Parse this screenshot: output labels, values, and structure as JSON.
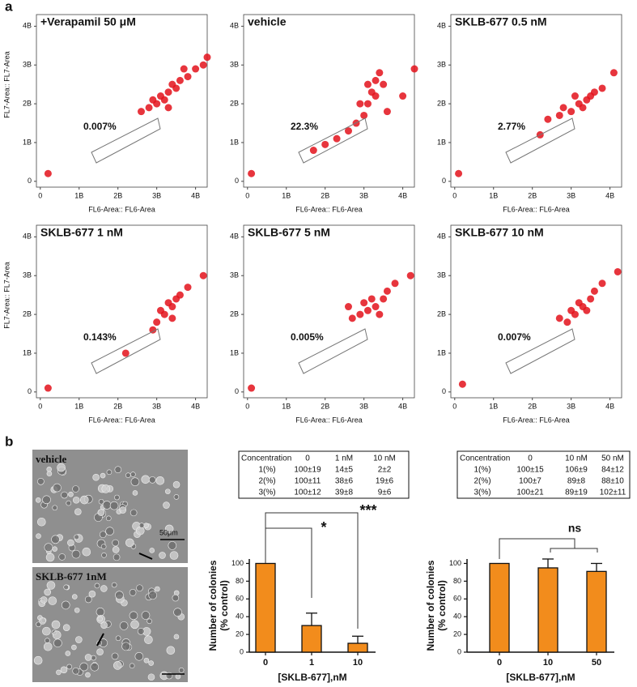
{
  "panel_labels": [
    "a",
    "b"
  ],
  "chart_data": [
    {
      "type": "scatter",
      "title": "+Verapamil 50 μM",
      "x_label": "FL6-Area:: FL6-Area",
      "y_label": "FL7-Area:: FL7-Area",
      "annotations": [
        "0.007%"
      ],
      "color": "#e3121b",
      "x": [
        2.6,
        2.8,
        3.0,
        3.1,
        3.3,
        3.4,
        3.5,
        3.6,
        3.8,
        4.0,
        4.2,
        3.2,
        2.9,
        3.3,
        3.7,
        0.2,
        4.3
      ],
      "y": [
        1.8,
        1.9,
        2.0,
        2.2,
        2.3,
        2.5,
        2.4,
        2.6,
        2.7,
        2.9,
        3.0,
        2.1,
        2.1,
        1.9,
        2.9,
        0.2,
        3.2
      ],
      "xlim": [
        -0.1,
        4.3
      ],
      "ylim": [
        -0.15,
        4.3
      ],
      "xticks": [
        0,
        {
          "value": 1,
          "label": "1B"
        },
        {
          "value": 2,
          "label": "2B"
        },
        {
          "value": 3,
          "label": "3B"
        },
        {
          "value": 4,
          "label": "4B"
        }
      ],
      "yticks": [
        0,
        {
          "value": 1,
          "label": "1B"
        },
        {
          "value": 2,
          "label": "2B"
        },
        {
          "value": 3,
          "label": "3B"
        },
        {
          "value": 4,
          "label": "4B"
        }
      ]
    },
    {
      "type": "scatter",
      "title": "vehicle",
      "x_label": "FL6-Area:: FL6-Area",
      "annotations": [
        "22.3%"
      ],
      "color": "#e3121b",
      "x": [
        1.7,
        2.0,
        2.3,
        2.6,
        2.8,
        3.0,
        3.1,
        3.2,
        3.3,
        3.4,
        3.1,
        3.3,
        3.5,
        2.9,
        3.6,
        4.0,
        4.3,
        0.1
      ],
      "y": [
        0.8,
        0.95,
        1.1,
        1.3,
        1.5,
        1.7,
        2.0,
        2.3,
        2.6,
        2.8,
        2.5,
        2.2,
        2.5,
        2.0,
        1.8,
        2.2,
        2.9,
        0.2
      ],
      "xlim": [
        -0.1,
        4.3
      ],
      "ylim": [
        -0.15,
        4.3
      ],
      "xticks": [
        0,
        {
          "value": 1,
          "label": "1B"
        },
        {
          "value": 2,
          "label": "2B"
        },
        {
          "value": 3,
          "label": "3B"
        },
        {
          "value": 4,
          "label": "4B"
        }
      ],
      "yticks": [
        0,
        {
          "value": 1,
          "label": "1B"
        },
        {
          "value": 2,
          "label": "2B"
        },
        {
          "value": 3,
          "label": "3B"
        },
        {
          "value": 4,
          "label": "4B"
        }
      ]
    },
    {
      "type": "scatter",
      "title": "SKLB-677 0.5 nM",
      "x_label": "FL6-Area:: FL6-Area",
      "annotations": [
        "2.77%"
      ],
      "color": "#e3121b",
      "x": [
        2.4,
        2.7,
        3.0,
        3.2,
        3.4,
        3.6,
        3.1,
        3.3,
        3.5,
        2.8,
        3.8,
        4.1,
        2.2,
        0.1
      ],
      "y": [
        1.6,
        1.7,
        1.8,
        2.0,
        2.1,
        2.3,
        2.2,
        1.9,
        2.2,
        1.9,
        2.4,
        2.8,
        1.2,
        0.2
      ],
      "xlim": [
        -0.1,
        4.3
      ],
      "ylim": [
        -0.15,
        4.3
      ],
      "xticks": [
        0,
        {
          "value": 1,
          "label": "1B"
        },
        {
          "value": 2,
          "label": "2B"
        },
        {
          "value": 3,
          "label": "3B"
        },
        {
          "value": 4,
          "label": "4B"
        }
      ],
      "yticks": [
        0,
        {
          "value": 1,
          "label": "1B"
        },
        {
          "value": 2,
          "label": "2B"
        },
        {
          "value": 3,
          "label": "3B"
        },
        {
          "value": 4,
          "label": "4B"
        }
      ]
    },
    {
      "type": "scatter",
      "title": "SKLB-677 1 nM",
      "x_label": "FL6-Area:: FL6-Area",
      "y_label": "FL7-Area:: FL7-Area",
      "annotations": [
        "0.143%"
      ],
      "color": "#e3121b",
      "x": [
        3.0,
        3.2,
        3.4,
        3.5,
        3.3,
        3.6,
        3.1,
        3.4,
        2.9,
        3.8,
        4.2,
        2.2,
        0.2
      ],
      "y": [
        1.8,
        2.0,
        2.2,
        2.4,
        2.3,
        2.5,
        2.1,
        1.9,
        1.6,
        2.7,
        3.0,
        1.0,
        0.1
      ],
      "xlim": [
        -0.1,
        4.3
      ],
      "ylim": [
        -0.15,
        4.3
      ],
      "xticks": [
        0,
        {
          "value": 1,
          "label": "1B"
        },
        {
          "value": 2,
          "label": "2B"
        },
        {
          "value": 3,
          "label": "3B"
        },
        {
          "value": 4,
          "label": "4B"
        }
      ],
      "yticks": [
        0,
        {
          "value": 1,
          "label": "1B"
        },
        {
          "value": 2,
          "label": "2B"
        },
        {
          "value": 3,
          "label": "3B"
        },
        {
          "value": 4,
          "label": "4B"
        }
      ]
    },
    {
      "type": "scatter",
      "title": "SKLB-677 5 nM",
      "x_label": "FL6-Area:: FL6-Area",
      "annotations": [
        "0.005%"
      ],
      "color": "#e3121b",
      "x": [
        2.7,
        2.9,
        3.1,
        3.3,
        3.5,
        3.2,
        3.0,
        3.4,
        3.6,
        3.8,
        4.2,
        2.6,
        0.1
      ],
      "y": [
        1.9,
        2.0,
        2.1,
        2.2,
        2.4,
        2.4,
        2.3,
        2.0,
        2.6,
        2.8,
        3.0,
        2.2,
        0.1
      ],
      "xlim": [
        -0.1,
        4.3
      ],
      "ylim": [
        -0.15,
        4.3
      ],
      "xticks": [
        0,
        {
          "value": 1,
          "label": "1B"
        },
        {
          "value": 2,
          "label": "2B"
        },
        {
          "value": 3,
          "label": "3B"
        },
        {
          "value": 4,
          "label": "4B"
        }
      ],
      "yticks": [
        0,
        {
          "value": 1,
          "label": "1B"
        },
        {
          "value": 2,
          "label": "2B"
        },
        {
          "value": 3,
          "label": "3B"
        },
        {
          "value": 4,
          "label": "4B"
        }
      ]
    },
    {
      "type": "scatter",
      "title": "SKLB-677 10 nM",
      "x_label": "FL6-Area:: FL6-Area",
      "annotations": [
        "0.007%"
      ],
      "color": "#e3121b",
      "x": [
        2.9,
        3.1,
        3.3,
        3.5,
        3.2,
        3.4,
        3.0,
        3.6,
        3.8,
        4.2,
        2.7,
        0.2
      ],
      "y": [
        1.8,
        2.0,
        2.2,
        2.4,
        2.3,
        2.1,
        2.1,
        2.6,
        2.8,
        3.1,
        1.9,
        0.2
      ],
      "xlim": [
        -0.1,
        4.3
      ],
      "ylim": [
        -0.15,
        4.3
      ],
      "xticks": [
        0,
        {
          "value": 1,
          "label": "1B"
        },
        {
          "value": 2,
          "label": "2B"
        },
        {
          "value": 3,
          "label": "3B"
        },
        {
          "value": 4,
          "label": "4B"
        }
      ],
      "yticks": [
        0,
        {
          "value": 1,
          "label": "1B"
        },
        {
          "value": 2,
          "label": "2B"
        },
        {
          "value": 3,
          "label": "3B"
        },
        {
          "value": 4,
          "label": "4B"
        }
      ]
    },
    {
      "type": "bar",
      "categories": [
        "0",
        "1",
        "10"
      ],
      "values": [
        100,
        30,
        10
      ],
      "errors": [
        null,
        14,
        8
      ],
      "color": "#f28c1c",
      "ylim": [
        0,
        105
      ],
      "yticks": [
        0,
        20,
        40,
        60,
        80,
        100
      ],
      "y_label": [
        "Number of colonies",
        "(% control)"
      ],
      "x_label": "[SKLB-677],nM",
      "annotations": [
        "*",
        "***"
      ]
    },
    {
      "type": "bar",
      "categories": [
        "0",
        "10",
        "50"
      ],
      "values": [
        100,
        95,
        91
      ],
      "errors": [
        null,
        10,
        9
      ],
      "color": "#f28c1c",
      "ylim": [
        0,
        105
      ],
      "yticks": [
        0,
        20,
        40,
        60,
        80,
        100
      ],
      "y_label": [
        "Number of colonies",
        "(% control)"
      ],
      "x_label": "[SKLB-677],nM",
      "annotations": [
        "ns"
      ]
    }
  ],
  "images": [
    {
      "label": "vehicle",
      "scale_bar": "50μm"
    },
    {
      "label": "SKLB-677 1nM"
    }
  ],
  "tables": [
    {
      "header": [
        "Concentration",
        "0",
        "1 nM",
        "10 nM"
      ],
      "rows": [
        [
          "1(%)",
          "100±19",
          "14±5",
          "2±2"
        ],
        [
          "2(%)",
          "100±11",
          "38±6",
          "19±6"
        ],
        [
          "3(%)",
          "100±12",
          "39±8",
          "9±6"
        ]
      ]
    },
    {
      "header": [
        "Concentration",
        "0",
        "10 nM",
        "50 nM"
      ],
      "rows": [
        [
          "1(%)",
          "100±15",
          "106±9",
          "84±12"
        ],
        [
          "2(%)",
          "100±7",
          "89±8",
          "88±10"
        ],
        [
          "3(%)",
          "100±21",
          "89±19",
          "102±11"
        ]
      ]
    }
  ]
}
